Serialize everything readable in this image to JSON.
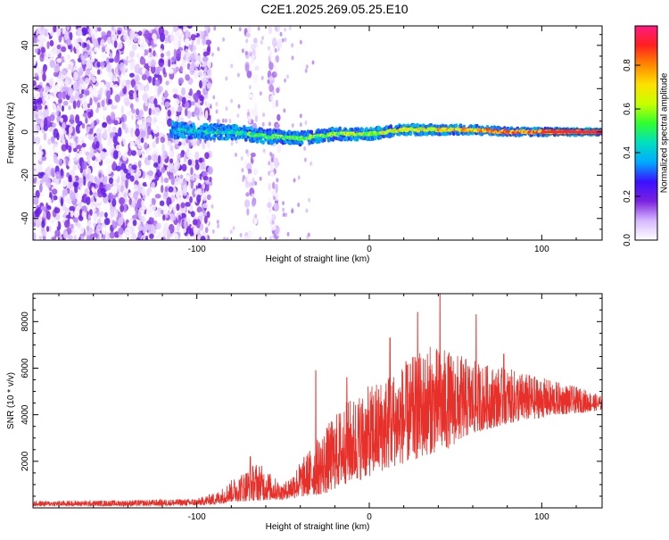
{
  "title": "C2E1.2025.269.05.25.E10",
  "colors": {
    "snr_line": "#e8302a",
    "signal_track": "#f02a40",
    "noise_violet": "#7a22e0",
    "axis": "#000000",
    "background": "#ffffff"
  },
  "chart_data": [
    {
      "type": "heatmap",
      "name": "spectrogram",
      "xlabel": "Height of straight line (km)",
      "ylabel": "Frequency (Hz)",
      "xlim": [
        -195,
        135
      ],
      "ylim": [
        -50,
        49
      ],
      "xticks": [
        -100,
        0,
        100
      ],
      "yticks": [
        -40,
        -20,
        0,
        20,
        40
      ],
      "grid": false,
      "noise_region": {
        "x_from": -195,
        "x_to": -92,
        "y_from": -50,
        "y_to": 49
      },
      "sparse_bands": [
        {
          "x_from": -72,
          "x_to": -65,
          "y_from": -50,
          "y_to": 49
        },
        {
          "x_from": -58,
          "x_to": -52,
          "y_from": -50,
          "y_to": 49
        }
      ],
      "signal_track": [
        {
          "x": -115,
          "y": 1
        },
        {
          "x": -100,
          "y": 0
        },
        {
          "x": -80,
          "y": 0
        },
        {
          "x": -60,
          "y": -2
        },
        {
          "x": -40,
          "y": -3
        },
        {
          "x": -20,
          "y": -1
        },
        {
          "x": 0,
          "y": -1
        },
        {
          "x": 20,
          "y": 1
        },
        {
          "x": 40,
          "y": 1
        },
        {
          "x": 60,
          "y": 1
        },
        {
          "x": 80,
          "y": 0
        },
        {
          "x": 100,
          "y": 0
        },
        {
          "x": 120,
          "y": 0
        },
        {
          "x": 135,
          "y": 0
        }
      ],
      "colorbar": {
        "label": "Normalized spectral amplitude",
        "range": [
          0,
          0.98
        ],
        "ticks": [
          "0.0",
          "0.2",
          "0.4",
          "0.6",
          "0.8"
        ],
        "tick_values": [
          0,
          0.2,
          0.4,
          0.6,
          0.8
        ],
        "colormap": [
          "#ffffff",
          "#d6b8ff",
          "#7a22e0",
          "#3a10ff",
          "#00aaff",
          "#00e0c0",
          "#30ff30",
          "#c8ff00",
          "#ffe000",
          "#ff8800",
          "#ff2020",
          "#ff1a80"
        ]
      }
    },
    {
      "type": "line",
      "name": "snr",
      "xlabel": "Height of straight line (km)",
      "ylabel": "SNR (10 * v/v)",
      "xlim": [
        -195,
        135
      ],
      "ylim": [
        0,
        9200
      ],
      "xticks": [
        -100,
        0,
        100
      ],
      "yticks": [
        2000,
        4000,
        6000,
        8000
      ],
      "grid": false,
      "envelope": [
        {
          "x": -195,
          "lo": 80,
          "hi": 300
        },
        {
          "x": -140,
          "lo": 80,
          "hi": 330
        },
        {
          "x": -100,
          "lo": 100,
          "hi": 400
        },
        {
          "x": -88,
          "lo": 150,
          "hi": 700
        },
        {
          "x": -80,
          "lo": 250,
          "hi": 1200
        },
        {
          "x": -65,
          "lo": 300,
          "hi": 2000
        },
        {
          "x": -50,
          "lo": 350,
          "hi": 1000
        },
        {
          "x": -35,
          "lo": 500,
          "hi": 2500
        },
        {
          "x": -25,
          "lo": 600,
          "hi": 3500
        },
        {
          "x": -15,
          "lo": 1000,
          "hi": 4500
        },
        {
          "x": -5,
          "lo": 1200,
          "hi": 5000
        },
        {
          "x": 5,
          "lo": 1500,
          "hi": 5500
        },
        {
          "x": 15,
          "lo": 1800,
          "hi": 6000
        },
        {
          "x": 25,
          "lo": 2000,
          "hi": 6500
        },
        {
          "x": 35,
          "lo": 2300,
          "hi": 7000
        },
        {
          "x": 45,
          "lo": 2500,
          "hi": 6800
        },
        {
          "x": 55,
          "lo": 3000,
          "hi": 6500
        },
        {
          "x": 65,
          "lo": 3300,
          "hi": 6200
        },
        {
          "x": 80,
          "lo": 3600,
          "hi": 6000
        },
        {
          "x": 95,
          "lo": 3800,
          "hi": 5700
        },
        {
          "x": 110,
          "lo": 4000,
          "hi": 5400
        },
        {
          "x": 125,
          "lo": 4100,
          "hi": 5100
        },
        {
          "x": 135,
          "lo": 4200,
          "hi": 4800
        }
      ],
      "spikes": [
        {
          "x": -69,
          "y": 2200
        },
        {
          "x": -31,
          "y": 5900
        },
        {
          "x": -13,
          "y": 5600
        },
        {
          "x": 12,
          "y": 7300
        },
        {
          "x": 28,
          "y": 8400
        },
        {
          "x": 41,
          "y": 9200
        },
        {
          "x": 62,
          "y": 8300
        },
        {
          "x": 78,
          "y": 6600
        }
      ]
    }
  ]
}
